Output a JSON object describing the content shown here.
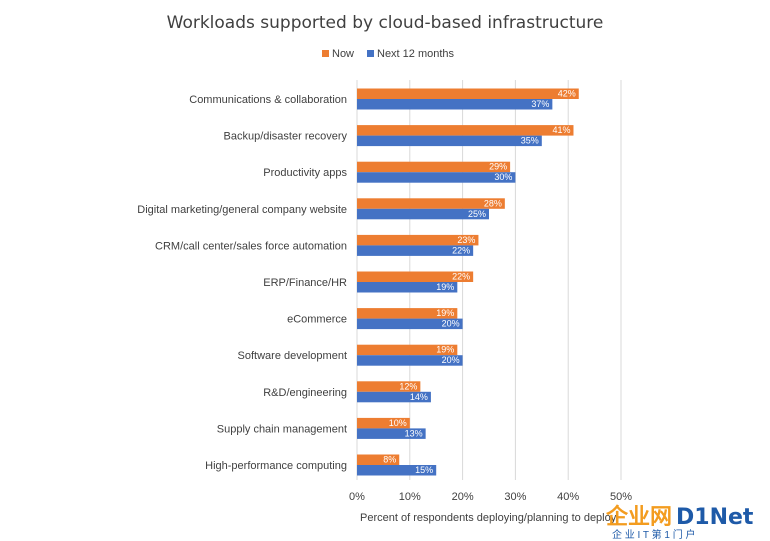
{
  "chart_data": {
    "type": "bar",
    "orientation": "horizontal",
    "title": "Workloads supported by cloud-based infrastructure",
    "xlabel": "Percent of respondents deploying/planning to deploy",
    "ylabel": "",
    "xlim": [
      0,
      50
    ],
    "ticks": [
      "0%",
      "10%",
      "20%",
      "30%",
      "40%",
      "50%"
    ],
    "tick_values": [
      0,
      10,
      20,
      30,
      40,
      50
    ],
    "grid": true,
    "legend_position": "top-center",
    "categories": [
      "Communications & collaboration",
      "Backup/disaster recovery",
      "Productivity apps",
      "Digital marketing/general company website",
      "CRM/call center/sales force automation",
      "ERP/Finance/HR",
      "eCommerce",
      "Software development",
      "R&D/engineering",
      "Supply chain management",
      "High-performance computing"
    ],
    "series": [
      {
        "name": "Now",
        "color": "#ED7D31",
        "values": [
          42,
          41,
          29,
          28,
          23,
          22,
          19,
          19,
          12,
          10,
          8
        ],
        "labels": [
          "42%",
          "41%",
          "29%",
          "28%",
          "23%",
          "22%",
          "19%",
          "19%",
          "12%",
          "10%",
          "8%"
        ]
      },
      {
        "name": "Next 12 months",
        "color": "#4472C4",
        "values": [
          37,
          35,
          30,
          25,
          22,
          19,
          20,
          20,
          14,
          13,
          15
        ],
        "labels": [
          "37%",
          "35%",
          "30%",
          "25%",
          "22%",
          "19%",
          "20%",
          "20%",
          "14%",
          "13%",
          "15%"
        ]
      }
    ]
  },
  "watermark": {
    "main_left": "企业网",
    "main_right": "D1Net",
    "sub": "企 业 I T 第 1 门 户",
    "color_orange": "#F39C1F",
    "color_blue": "#1E5AA8"
  }
}
